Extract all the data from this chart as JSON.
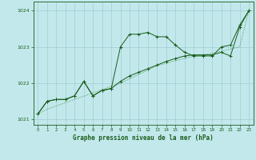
{
  "title": "Graphe pression niveau de la mer (hPa)",
  "bg_color": "#c2e8ec",
  "grid_color": "#a0cdd4",
  "line_color_dark": "#1a5c1a",
  "line_color_dotted": "#2d8c2d",
  "xlim": [
    -0.5,
    23.5
  ],
  "ylim": [
    1020.85,
    1024.25
  ],
  "yticks": [
    1021,
    1022,
    1023,
    1024
  ],
  "xticks": [
    0,
    1,
    2,
    3,
    4,
    5,
    6,
    7,
    8,
    9,
    10,
    11,
    12,
    13,
    14,
    15,
    16,
    17,
    18,
    19,
    20,
    21,
    22,
    23
  ],
  "series1_x": [
    0,
    1,
    2,
    3,
    4,
    5,
    6,
    7,
    8,
    9,
    10,
    11,
    12,
    13,
    14,
    15,
    16,
    17,
    18,
    19,
    20,
    21,
    22,
    23
  ],
  "series1_y": [
    1021.15,
    1021.5,
    1021.55,
    1021.55,
    1021.65,
    1022.05,
    1021.65,
    1021.8,
    1021.85,
    1023.0,
    1023.35,
    1023.35,
    1023.4,
    1023.28,
    1023.28,
    1023.05,
    1022.85,
    1022.75,
    1022.75,
    1022.75,
    1023.0,
    1023.05,
    1023.6,
    1024.0
  ],
  "series2_x": [
    0,
    1,
    2,
    3,
    4,
    5,
    6,
    7,
    8,
    9,
    10,
    11,
    12,
    13,
    14,
    15,
    16,
    17,
    18,
    19,
    20,
    21,
    22,
    23
  ],
  "series2_y": [
    1021.15,
    1021.28,
    1021.37,
    1021.46,
    1021.55,
    1021.64,
    1021.73,
    1021.82,
    1021.91,
    1022.0,
    1022.12,
    1022.24,
    1022.36,
    1022.48,
    1022.55,
    1022.62,
    1022.68,
    1022.74,
    1022.78,
    1022.82,
    1022.88,
    1022.94,
    1023.0,
    1024.0
  ],
  "series3_x": [
    0,
    1,
    2,
    3,
    4,
    5,
    6,
    7,
    8,
    9,
    10,
    11,
    12,
    13,
    14,
    15,
    16,
    17,
    18,
    19,
    20,
    21,
    22,
    23
  ],
  "series3_y": [
    1021.15,
    1021.5,
    1021.55,
    1021.55,
    1021.65,
    1022.05,
    1021.65,
    1021.8,
    1021.85,
    1022.05,
    1022.2,
    1022.3,
    1022.4,
    1022.5,
    1022.6,
    1022.68,
    1022.75,
    1022.78,
    1022.78,
    1022.78,
    1022.85,
    1022.75,
    1023.55,
    1024.0
  ]
}
